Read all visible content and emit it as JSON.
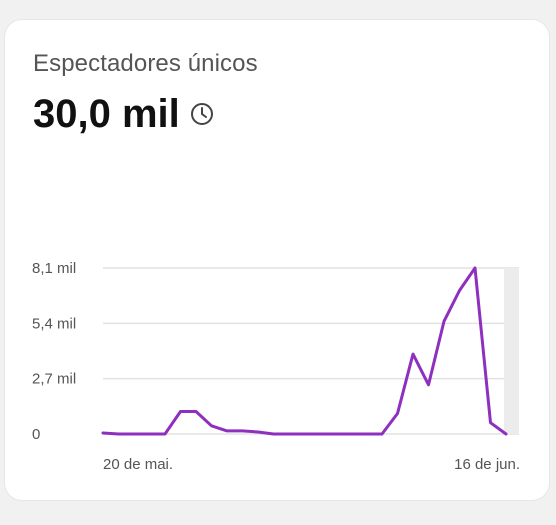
{
  "card": {
    "metric_label": "Espectadores únicos",
    "metric_value": "30,0 mil",
    "info_icon": "clock-icon"
  },
  "colors": {
    "line": "#8e2fbf",
    "grid": "#e2e2e2",
    "highlight": "#ececec"
  },
  "chart_data": {
    "type": "line",
    "title": "",
    "xlabel": "",
    "ylabel": "",
    "ylim": [
      0,
      8100
    ],
    "y_ticks": [
      {
        "value": 0,
        "label": "0"
      },
      {
        "value": 2700,
        "label": "2,7 mil"
      },
      {
        "value": 5400,
        "label": "5,4 mil"
      },
      {
        "value": 8100,
        "label": "8,1 mil"
      }
    ],
    "x_tick_labels": [
      {
        "index": 0,
        "label": "20 de mai."
      },
      {
        "index": 27,
        "label": "16 de jun."
      }
    ],
    "highlight_last_day": true,
    "grid": true,
    "series": [
      {
        "values": [
          50,
          0,
          0,
          0,
          0,
          1100,
          1100,
          400,
          150,
          150,
          100,
          0,
          0,
          0,
          0,
          0,
          0,
          0,
          0,
          1000,
          3900,
          2400,
          5500,
          7000,
          8100,
          550,
          0
        ]
      }
    ]
  }
}
